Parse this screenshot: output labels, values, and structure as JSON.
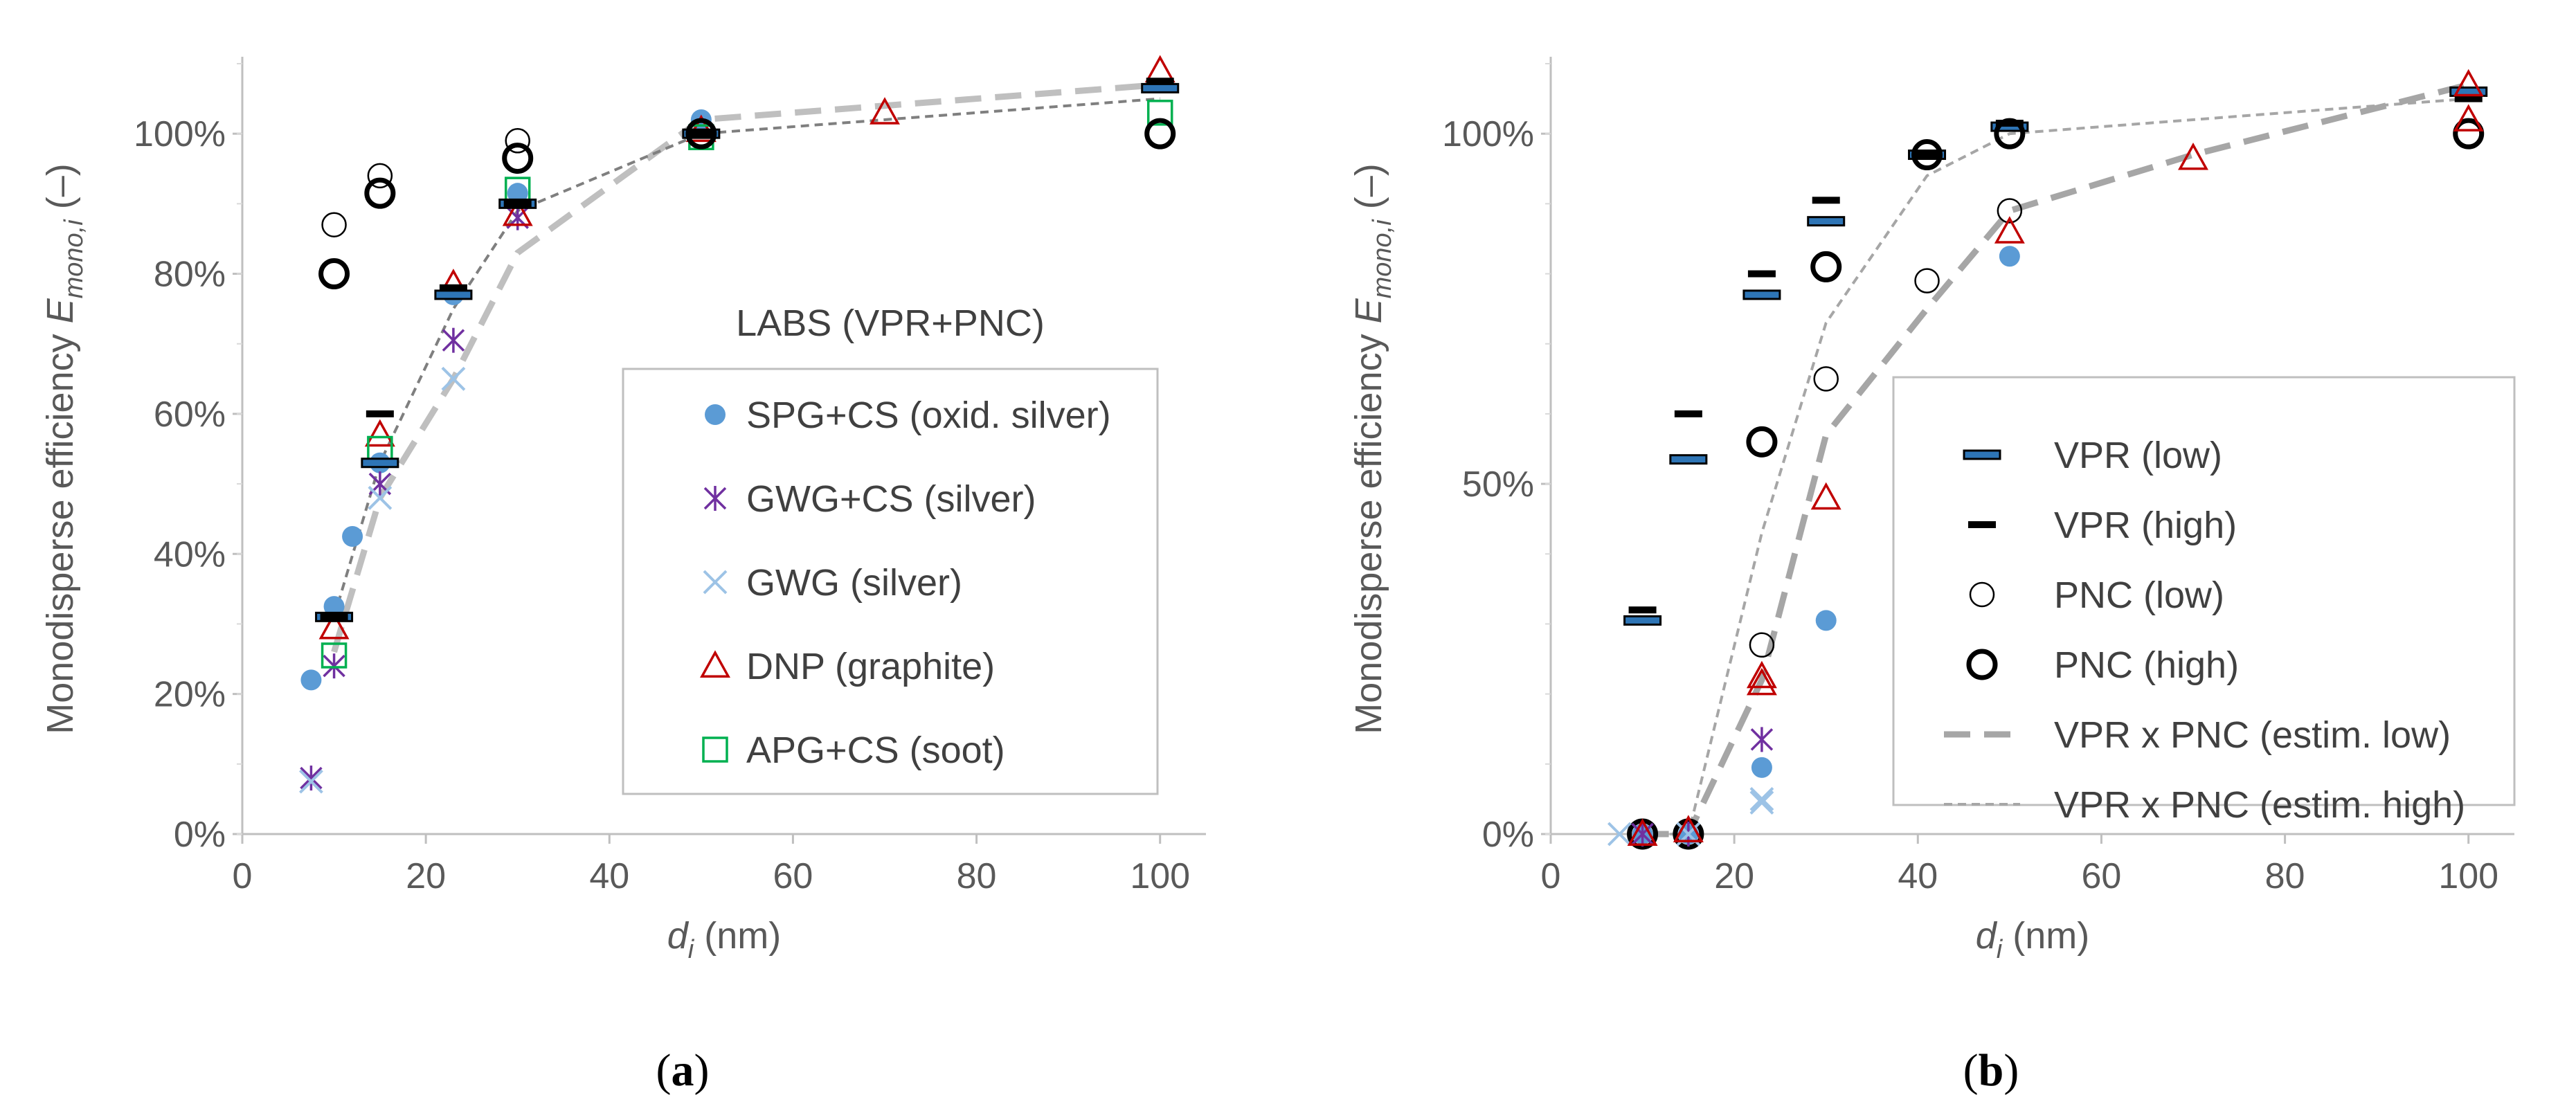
{
  "chart_data": [
    {
      "type": "scatter",
      "panel_label": "(a)",
      "panel_letter": "a",
      "ylabel_main": "Monodisperse efficiency ",
      "ylabel_sym": "E",
      "ylabel_sub": "mono,i",
      "ylabel_unit": " (–)",
      "xlabel_sym": "d",
      "xlabel_sub": "i",
      "xlabel_unit": " (nm)",
      "xlim": [
        0,
        105
      ],
      "ylim": [
        0,
        1.1
      ],
      "xticks": [
        0,
        20,
        40,
        60,
        80,
        100
      ],
      "xtick_labels": [
        "0",
        "20",
        "40",
        "60",
        "80",
        "100"
      ],
      "yticks": [
        0,
        0.2,
        0.4,
        0.6,
        0.8,
        1.0
      ],
      "ytick_labels": [
        "0%",
        "20%",
        "40%",
        "60%",
        "80%",
        "100%"
      ],
      "legend_title": "LABS (VPR+PNC)",
      "series": [
        {
          "name": "SPG+CS (oxid. silver)",
          "marker": "dot",
          "color": "#5b9bd5",
          "legend": true,
          "points": [
            [
              7.5,
              0.22
            ],
            [
              10,
              0.325
            ],
            [
              12,
              0.425
            ],
            [
              15,
              0.53
            ],
            [
              23,
              0.77
            ],
            [
              30,
              0.915
            ],
            [
              50,
              1.02
            ]
          ]
        },
        {
          "name": "GWG+CS (silver)",
          "marker": "star",
          "color": "#7030a0",
          "legend": true,
          "points": [
            [
              7.5,
              0.08
            ],
            [
              10,
              0.24
            ],
            [
              15,
              0.5
            ],
            [
              23,
              0.705
            ],
            [
              30,
              0.88
            ]
          ]
        },
        {
          "name": "GWG (silver)",
          "marker": "x",
          "color": "#9dc3e6",
          "legend": true,
          "points": [
            [
              7.5,
              0.075
            ],
            [
              15,
              0.48
            ],
            [
              23,
              0.65
            ]
          ]
        },
        {
          "name": "DNP (graphite)",
          "marker": "triangle",
          "color": "#c00000",
          "legend": true,
          "points": [
            [
              10,
              0.295
            ],
            [
              15,
              0.57
            ],
            [
              23,
              0.785
            ],
            [
              30,
              0.885
            ],
            [
              50,
              1.005
            ],
            [
              70,
              1.03
            ],
            [
              100,
              1.09
            ]
          ]
        },
        {
          "name": "APG+CS (soot)",
          "marker": "square",
          "color": "#00b050",
          "legend": true,
          "points": [
            [
              10,
              0.255
            ],
            [
              15,
              0.55
            ],
            [
              30,
              0.92
            ],
            [
              50,
              0.995
            ],
            [
              100,
              1.03
            ]
          ]
        },
        {
          "name": "VPR (low)",
          "marker": "bar-blue",
          "color": "#1f3864",
          "legend": false,
          "points": [
            [
              10,
              0.31
            ],
            [
              15,
              0.53
            ],
            [
              23,
              0.77
            ],
            [
              30,
              0.9
            ],
            [
              50,
              1.0
            ],
            [
              100,
              1.065
            ]
          ]
        },
        {
          "name": "VPR (high)",
          "marker": "bar-black",
          "color": "#000000",
          "legend": false,
          "points": [
            [
              10,
              0.31
            ],
            [
              15,
              0.6
            ],
            [
              23,
              0.78
            ],
            [
              30,
              0.9
            ],
            [
              50,
              1.0
            ],
            [
              100,
              1.075
            ]
          ]
        },
        {
          "name": "PNC (low)",
          "marker": "circle-thin",
          "color": "#000000",
          "legend": false,
          "points": [
            [
              10,
              0.87
            ],
            [
              15,
              0.94
            ],
            [
              30,
              0.99
            ],
            [
              50,
              1.0
            ],
            [
              100,
              1.0
            ]
          ]
        },
        {
          "name": "PNC (high)",
          "marker": "circle-thick",
          "color": "#000000",
          "legend": false,
          "points": [
            [
              10,
              0.8
            ],
            [
              15,
              0.915
            ],
            [
              30,
              0.965
            ],
            [
              50,
              1.0
            ],
            [
              100,
              1.0
            ]
          ]
        },
        {
          "name": "VPR x PNC (estim. low)",
          "marker": "line-dash-thick",
          "color": "#bfbfbf",
          "legend": false,
          "points": [
            [
              10,
              0.26
            ],
            [
              15,
              0.48
            ],
            [
              23,
              0.65
            ],
            [
              30,
              0.83
            ],
            [
              50,
              1.02
            ],
            [
              70,
              1.04
            ],
            [
              100,
              1.07
            ]
          ]
        },
        {
          "name": "VPR x PNC (estim. high)",
          "marker": "line-dash-thin",
          "color": "#7f7f7f",
          "legend": false,
          "points": [
            [
              10,
              0.31
            ],
            [
              15,
              0.53
            ],
            [
              23,
              0.75
            ],
            [
              30,
              0.89
            ],
            [
              50,
              1.0
            ],
            [
              100,
              1.05
            ]
          ]
        }
      ]
    },
    {
      "type": "scatter",
      "panel_label": "(b)",
      "panel_letter": "b",
      "ylabel_main": "Monodisperse efficiency ",
      "ylabel_sym": "E",
      "ylabel_sub": "mono,i",
      "ylabel_unit": " (–)",
      "xlabel_sym": "d",
      "xlabel_sub": "i",
      "xlabel_unit": " (nm)",
      "xlim": [
        0,
        105
      ],
      "ylim": [
        0,
        1.1
      ],
      "xticks": [
        0,
        20,
        40,
        60,
        80,
        100
      ],
      "xtick_labels": [
        "0",
        "20",
        "40",
        "60",
        "80",
        "100"
      ],
      "yticks": [
        0,
        0.5,
        1.0
      ],
      "ytick_labels": [
        "0%",
        "50%",
        "100%"
      ],
      "legend_title": "",
      "series": [
        {
          "name": "VPR (low)",
          "marker": "bar-blue",
          "color": "#1f3864",
          "legend": true,
          "points": [
            [
              10,
              0.305
            ],
            [
              15,
              0.535
            ],
            [
              23,
              0.77
            ],
            [
              30,
              0.875
            ],
            [
              41,
              0.97
            ],
            [
              50,
              1.01
            ],
            [
              100,
              1.06
            ]
          ]
        },
        {
          "name": "VPR (high)",
          "marker": "bar-black",
          "color": "#000000",
          "legend": true,
          "points": [
            [
              10,
              0.32
            ],
            [
              15,
              0.6
            ],
            [
              23,
              0.8
            ],
            [
              30,
              0.905
            ],
            [
              41,
              0.97
            ],
            [
              50,
              1.015
            ],
            [
              100,
              1.05
            ]
          ]
        },
        {
          "name": "PNC (low)",
          "marker": "circle-thin",
          "color": "#000000",
          "legend": true,
          "points": [
            [
              10,
              0.0
            ],
            [
              15,
              0.0
            ],
            [
              23,
              0.27
            ],
            [
              30,
              0.65
            ],
            [
              41,
              0.79
            ],
            [
              50,
              0.89
            ],
            [
              100,
              1.0
            ]
          ]
        },
        {
          "name": "PNC (high)",
          "marker": "circle-thick",
          "color": "#000000",
          "legend": true,
          "points": [
            [
              10,
              0.0
            ],
            [
              15,
              0.0
            ],
            [
              23,
              0.56
            ],
            [
              30,
              0.81
            ],
            [
              41,
              0.97
            ],
            [
              50,
              1.0
            ],
            [
              100,
              1.0
            ]
          ]
        },
        {
          "name": "VPR x PNC (estim. low)",
          "marker": "line-dash-thick",
          "color": "#a6a6a6",
          "legend": true,
          "points": [
            [
              10,
              0.0
            ],
            [
              15,
              0.0
            ],
            [
              23,
              0.22
            ],
            [
              30,
              0.57
            ],
            [
              41,
              0.75
            ],
            [
              50,
              0.89
            ],
            [
              70,
              0.97
            ],
            [
              100,
              1.07
            ]
          ]
        },
        {
          "name": "VPR x PNC (estim. high)",
          "marker": "line-dash-thin",
          "color": "#a6a6a6",
          "legend": true,
          "points": [
            [
              10,
              0.0
            ],
            [
              15,
              0.0
            ],
            [
              23,
              0.43
            ],
            [
              30,
              0.73
            ],
            [
              41,
              0.94
            ],
            [
              50,
              1.0
            ],
            [
              100,
              1.05
            ]
          ]
        },
        {
          "name": "SPG+CS (oxid. silver)",
          "marker": "dot",
          "color": "#5b9bd5",
          "legend": false,
          "points": [
            [
              10,
              0.0
            ],
            [
              15,
              0.0
            ],
            [
              23,
              0.095
            ],
            [
              30,
              0.305
            ],
            [
              50,
              0.825
            ]
          ]
        },
        {
          "name": "GWG+CS (silver)",
          "marker": "star",
          "color": "#7030a0",
          "legend": false,
          "points": [
            [
              10,
              0.0
            ],
            [
              15,
              0.0
            ],
            [
              23,
              0.135
            ]
          ]
        },
        {
          "name": "GWG (silver)",
          "marker": "x",
          "color": "#9dc3e6",
          "legend": false,
          "points": [
            [
              7.5,
              0.0
            ],
            [
              15,
              0.0
            ],
            [
              23,
              0.045
            ],
            [
              23,
              0.05
            ]
          ]
        },
        {
          "name": "DNP (graphite)",
          "marker": "triangle",
          "color": "#c00000",
          "legend": false,
          "points": [
            [
              10,
              0.0
            ],
            [
              15,
              0.005
            ],
            [
              23,
              0.215
            ],
            [
              23,
              0.225
            ],
            [
              30,
              0.48
            ],
            [
              50,
              0.86
            ],
            [
              70,
              0.965
            ],
            [
              100,
              1.07
            ],
            [
              100,
              1.02
            ]
          ]
        }
      ]
    }
  ]
}
